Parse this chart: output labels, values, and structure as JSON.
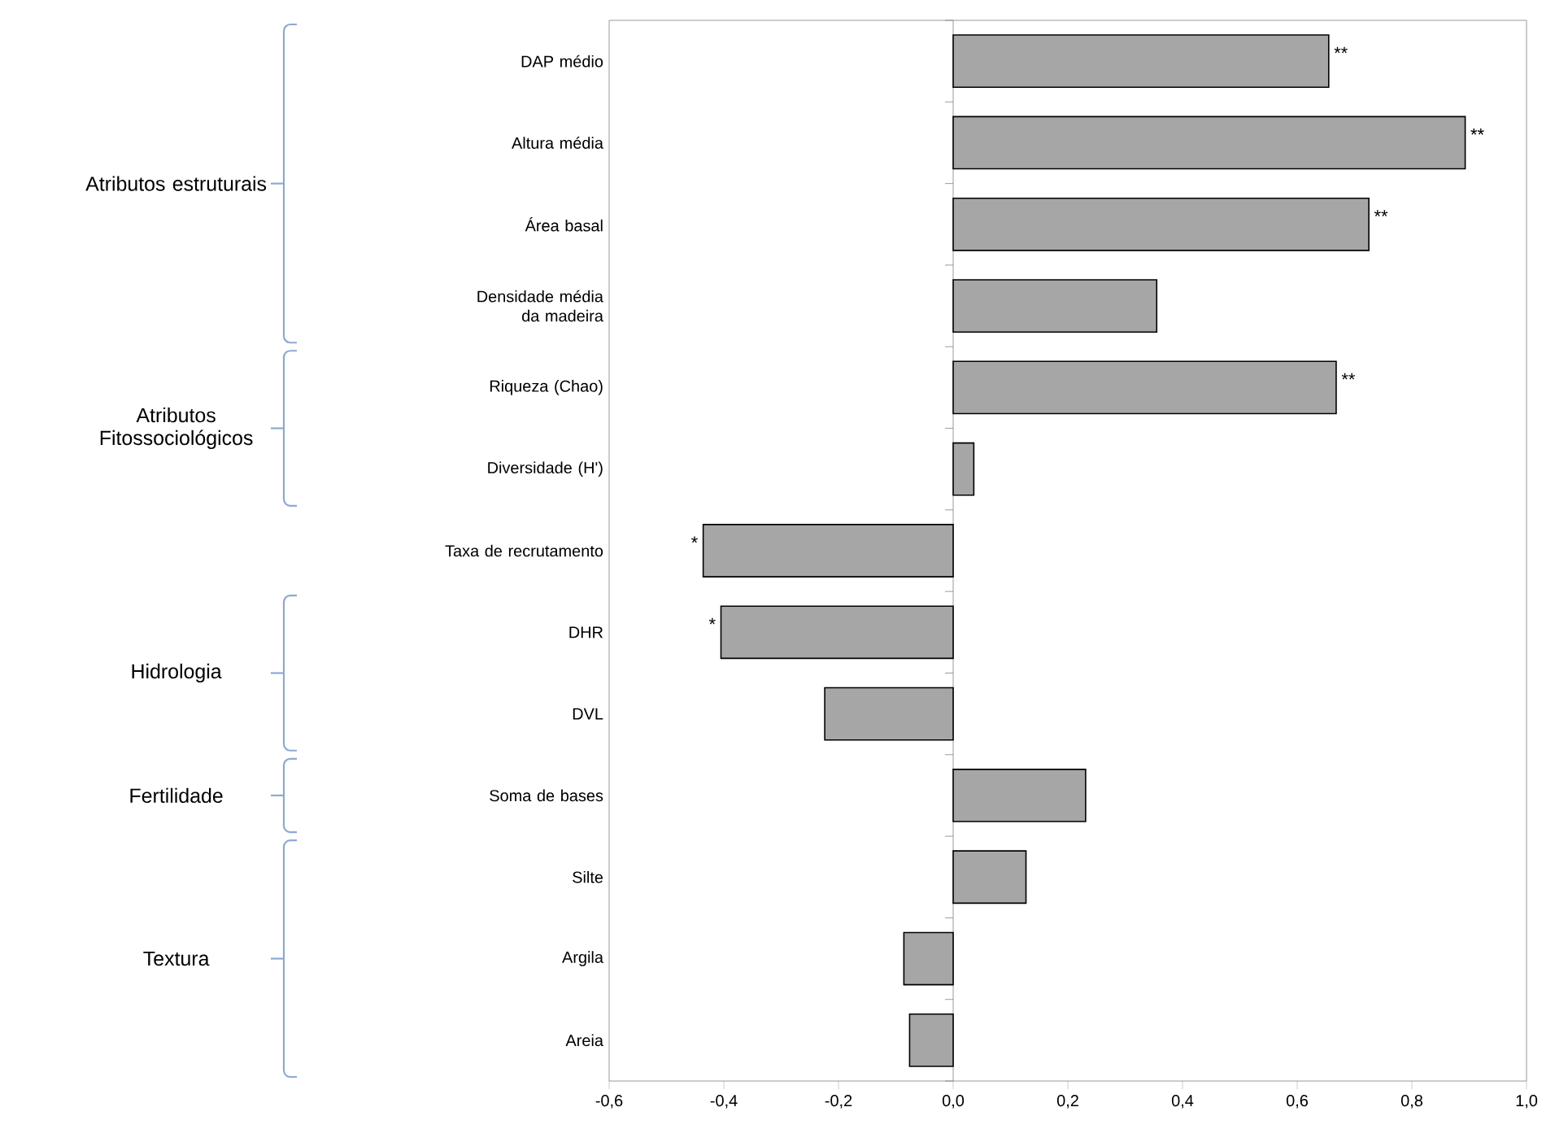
{
  "chart_data": {
    "type": "bar",
    "orientation": "horizontal",
    "categories": [
      "DAP médio",
      "Altura média",
      "Área basal",
      "Densidade média da madeira",
      "Riqueza (Chao)",
      "Diversidade (H')",
      "Taxa de recrutamento",
      "DHR",
      "DVL",
      "Soma de bases",
      "Silte",
      "Argila",
      "Areia"
    ],
    "values": [
      0.655,
      0.893,
      0.725,
      0.355,
      0.668,
      0.036,
      -0.436,
      -0.405,
      -0.224,
      0.231,
      0.127,
      -0.086,
      -0.076
    ],
    "value_labels": [
      "**",
      "**",
      "**",
      null,
      "**",
      null,
      "*",
      "*",
      null,
      null,
      null,
      null,
      null
    ],
    "color": "#a6a6a6",
    "xlim": [
      -0.6,
      1.0
    ],
    "xticks": [
      {
        "value": -0.6,
        "label": "-0,6"
      },
      {
        "value": -0.4,
        "label": "-0,4"
      },
      {
        "value": -0.2,
        "label": "-0,2"
      },
      {
        "value": 0.0,
        "label": "0,0"
      },
      {
        "value": 0.2,
        "label": "0,2"
      },
      {
        "value": 0.4,
        "label": "0,4"
      },
      {
        "value": 0.6,
        "label": "0,6"
      },
      {
        "value": 0.8,
        "label": "0,8"
      },
      {
        "value": 1.0,
        "label": "1,0"
      }
    ],
    "annotations": [
      "Atributos estruturais",
      "Atributos Fitossociológicos",
      "Hidrologia",
      "Fertilidade",
      "Textura"
    ]
  }
}
